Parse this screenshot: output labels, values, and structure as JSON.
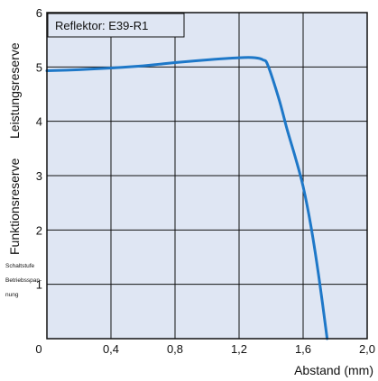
{
  "chart_data": {
    "type": "line",
    "title": "",
    "legend_box": "Reflektor: E39-R1",
    "xlabel": "Abstand (mm)",
    "ylabel_line1": "Funktionsreserve",
    "ylabel_line2": "Leistungsreserve",
    "side_note": [
      "Schaltstufe",
      "Betriebsspan-",
      "nung"
    ],
    "xlim": [
      0,
      2.0
    ],
    "ylim": [
      0,
      6
    ],
    "x_ticks": [
      "0",
      "0,4",
      "0,8",
      "1,2",
      "1,6",
      "2,0"
    ],
    "x_tick_values": [
      0,
      0.4,
      0.8,
      1.2,
      1.6,
      2.0
    ],
    "y_ticks": [
      "1",
      "2",
      "3",
      "4",
      "5",
      "6"
    ],
    "y_tick_values": [
      1,
      2,
      3,
      4,
      5,
      6
    ],
    "grid": true,
    "background_color": "#dfe6f3",
    "line_color": "#1e78c8",
    "series": [
      {
        "x": [
          0,
          0.2,
          0.4,
          0.6,
          0.7,
          0.8,
          1.0,
          1.2,
          1.3,
          1.35,
          1.38,
          1.45,
          1.5,
          1.55,
          1.6,
          1.65,
          1.7,
          1.75
        ],
        "y": [
          4.93,
          4.95,
          4.98,
          5.02,
          5.05,
          5.08,
          5.13,
          5.17,
          5.17,
          5.13,
          5.03,
          4.4,
          3.85,
          3.35,
          2.8,
          2.05,
          1.1,
          0
        ]
      }
    ]
  }
}
